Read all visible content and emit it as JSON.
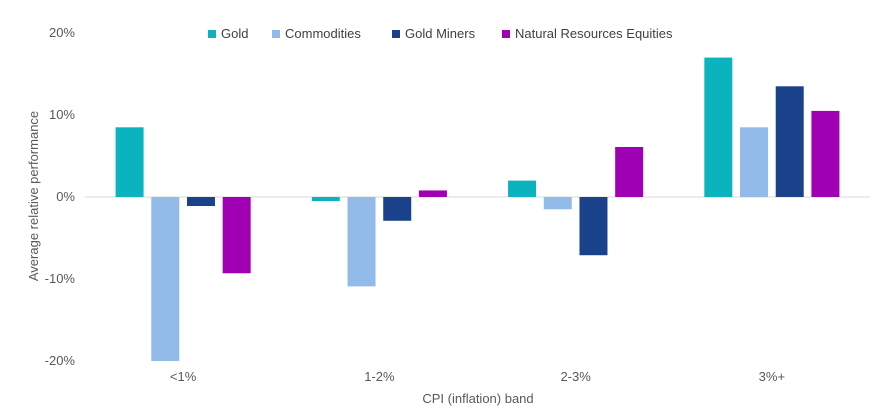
{
  "chart_data": {
    "type": "bar",
    "categories": [
      "<1%",
      "1-2%",
      "2-3%",
      "3%+"
    ],
    "series": [
      {
        "name": "Gold",
        "color": "#0BB3BE",
        "values": [
          8.5,
          -0.5,
          2.0,
          17.0
        ]
      },
      {
        "name": "Commodities",
        "color": "#92BBEA",
        "values": [
          -20.0,
          -10.9,
          -1.5,
          8.5
        ]
      },
      {
        "name": "Gold Miners",
        "color": "#1A428A",
        "values": [
          -1.1,
          -2.9,
          -7.1,
          13.5
        ]
      },
      {
        "name": "Natural Resources Equities",
        "color": "#A000B4",
        "values": [
          -9.3,
          0.8,
          6.1,
          10.5
        ]
      }
    ],
    "xlabel": "CPI (inflation) band",
    "ylabel": "Average relative performance",
    "ylim": [
      -20,
      20
    ],
    "yticks": [
      -20,
      -10,
      0,
      10,
      20
    ],
    "ytick_labels": [
      "-20%",
      "-10%",
      "0%",
      "10%",
      "20%"
    ],
    "grid": false,
    "legend_position": "top-center"
  }
}
